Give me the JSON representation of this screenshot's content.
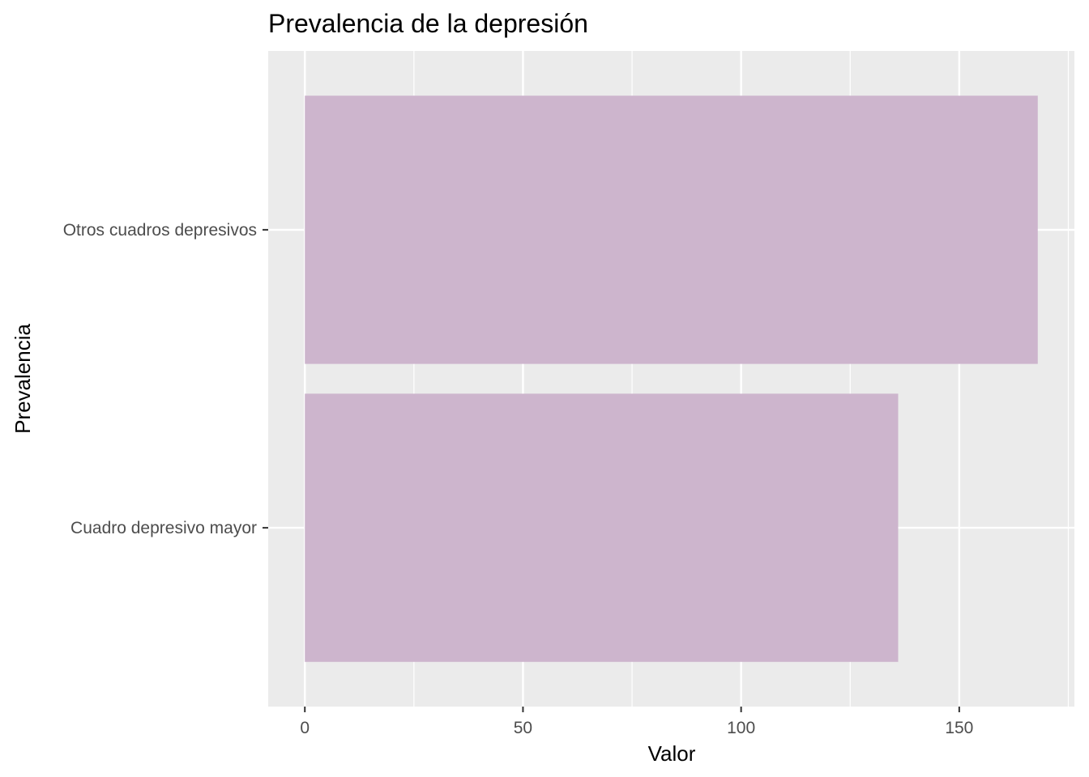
{
  "chart_data": {
    "type": "bar",
    "orientation": "horizontal",
    "title": "Prevalencia de la depresión",
    "xlabel": "Valor",
    "ylabel": "Prevalencia",
    "categories": [
      "Cuadro depresivo mayor",
      "Otros cuadros depresivos"
    ],
    "values": [
      136,
      168
    ],
    "xlim": [
      -8.4,
      176.4
    ],
    "x_ticks": [
      0,
      50,
      100,
      150
    ],
    "x_minor_ticks": [
      25,
      75,
      125,
      175
    ],
    "grid": true,
    "legend": "none",
    "colors": {
      "bar": "#cdb5cd",
      "panel": "#ebebeb",
      "grid": "#ffffff",
      "tick_text": "#4d4d4d",
      "tick_mark": "#333333"
    }
  }
}
